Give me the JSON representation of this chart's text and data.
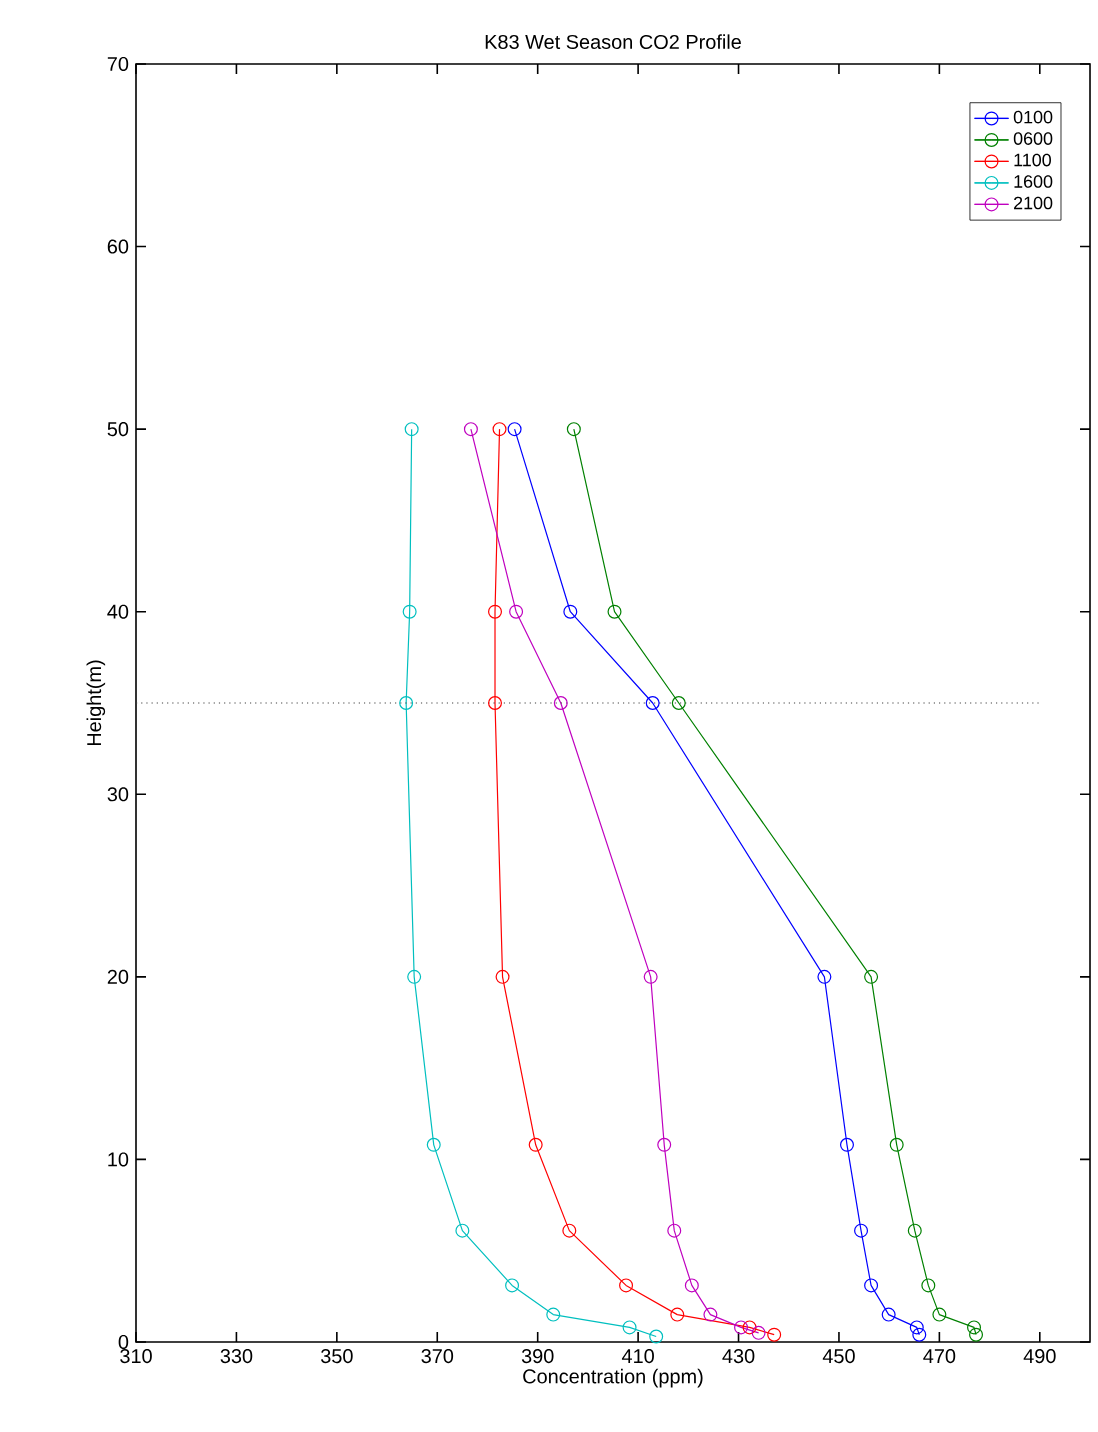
{
  "chart_data": {
    "type": "line",
    "title": "K83 Wet Season CO2 Profile",
    "xlabel": "Concentration (ppm)",
    "ylabel": "Height(m)",
    "xlim": [
      310,
      500
    ],
    "ylim": [
      0,
      70
    ],
    "xticks": [
      310,
      330,
      350,
      370,
      390,
      410,
      430,
      450,
      470,
      490
    ],
    "yticks": [
      0,
      10,
      20,
      30,
      40,
      50,
      60,
      70
    ],
    "legend": "top right",
    "grid": false,
    "marker": "circle",
    "line_style": "solid",
    "ref_lines": [
      {
        "axis": "y",
        "value": 35,
        "color": "#404040",
        "line_style": "dotted"
      }
    ],
    "series": [
      {
        "name": "0100",
        "color": "#0000ff",
        "x": [
          385.4,
          396.5,
          412.9,
          447.1,
          451.6,
          454.4,
          456.4,
          459.9,
          465.5,
          466
        ],
        "values": [
          50,
          40,
          35,
          20,
          10.8,
          6.1,
          3.1,
          1.5,
          0.8,
          0.4
        ]
      },
      {
        "name": "0600",
        "color": "#008000",
        "x": [
          397.2,
          405.3,
          418.1,
          456.4,
          461.5,
          465.1,
          467.8,
          470,
          476.9,
          477.3
        ],
        "values": [
          50,
          40,
          35,
          20,
          10.8,
          6.1,
          3.1,
          1.5,
          0.8,
          0.4
        ]
      },
      {
        "name": "1100",
        "color": "#ff0000",
        "x": [
          382.4,
          381.5,
          381.5,
          383,
          389.6,
          396.3,
          407.6,
          417.8,
          432.2,
          437.1
        ],
        "values": [
          50,
          40,
          35,
          20,
          10.8,
          6.1,
          3.1,
          1.5,
          0.8,
          0.4
        ]
      },
      {
        "name": "1600",
        "color": "#00bfbf",
        "x": [
          364.9,
          364.5,
          363.8,
          365.4,
          369.3,
          375,
          384.9,
          393.1,
          408.3,
          413.6
        ],
        "values": [
          50,
          40,
          35,
          20,
          10.8,
          6.1,
          3.1,
          1.5,
          0.8,
          0.3
        ]
      },
      {
        "name": "2100",
        "color": "#bf00bf",
        "x": [
          376.7,
          385.7,
          394.6,
          412.5,
          415.2,
          417.2,
          420.7,
          424.4,
          430.5,
          434
        ],
        "values": [
          50,
          40,
          35,
          20,
          10.8,
          6.1,
          3.1,
          1.5,
          0.8,
          0.5
        ]
      }
    ]
  }
}
